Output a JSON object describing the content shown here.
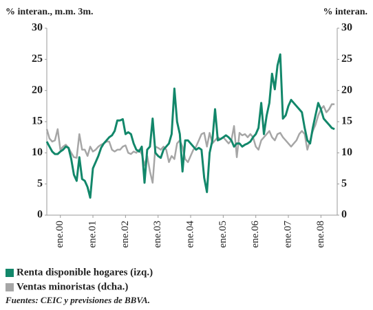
{
  "chart_data": {
    "type": "line",
    "y_label": "% interan., m.m. 3m.",
    "y2_label": "% interan.",
    "source": "Fuentes: CEIC y previsiones de BBVA.",
    "x": [
      -5,
      -4,
      -3,
      -2,
      -1,
      0,
      1,
      2,
      3,
      4,
      5,
      6,
      7,
      8,
      9,
      10,
      11,
      12,
      13,
      14,
      15,
      16,
      17,
      18,
      19,
      20,
      21,
      22,
      23,
      24,
      25,
      26,
      27,
      28,
      29,
      30,
      31,
      32,
      33,
      34,
      35,
      36,
      37,
      38,
      39,
      40,
      41,
      42,
      43,
      44,
      45,
      46,
      47,
      48,
      49,
      50,
      51,
      52,
      53,
      54,
      55,
      56,
      57,
      58,
      59,
      60,
      61,
      62,
      63,
      64,
      65,
      66,
      67,
      68,
      69,
      70,
      71,
      72,
      73,
      74,
      75,
      76,
      77,
      78,
      79,
      80,
      81,
      82,
      83,
      84,
      85,
      86,
      87,
      88,
      89,
      90,
      91,
      92,
      93,
      94,
      95,
      96,
      97,
      98,
      99,
      100,
      101
    ],
    "xlim": [
      -5,
      102
    ],
    "xticks": [
      {
        "value": 0,
        "label": "ene.00"
      },
      {
        "value": 12,
        "label": "ene.01"
      },
      {
        "value": 24,
        "label": "ene.02"
      },
      {
        "value": 36,
        "label": "ene.03"
      },
      {
        "value": 48,
        "label": "ene.04"
      },
      {
        "value": 60,
        "label": "ene.05"
      },
      {
        "value": 72,
        "label": "ene.06"
      },
      {
        "value": 84,
        "label": "ene.07"
      },
      {
        "value": 96,
        "label": "ene.08"
      }
    ],
    "ylim": [
      0,
      30
    ],
    "yticks": [
      0,
      5,
      10,
      15,
      20,
      25,
      30
    ],
    "y2lim": [
      0,
      30
    ],
    "y2ticks": [
      0,
      5,
      10,
      15,
      20,
      25,
      30
    ],
    "series": [
      {
        "name": "Renta disponible hogares (izq.)",
        "color": "#12876a",
        "axis": "y",
        "values": [
          11.8,
          11,
          10.2,
          9.8,
          9.8,
          10.2,
          10.5,
          11,
          10.8,
          9,
          6.5,
          5.5,
          9.3,
          5.8,
          5.5,
          4.5,
          2.8,
          7.5,
          8.5,
          9.5,
          10.8,
          11.5,
          12,
          12.5,
          12.8,
          13.5,
          15.2,
          15.2,
          15.4,
          13,
          13.3,
          13,
          11.5,
          10.5,
          10.2,
          11,
          5.2,
          10.5,
          11,
          15.5,
          10,
          9.5,
          9.2,
          10.5,
          11,
          11.5,
          13,
          20.3,
          15,
          13,
          7,
          12,
          12,
          11.5,
          11,
          10.5,
          10.8,
          10.5,
          6,
          3.7,
          10,
          12,
          17,
          12,
          12.2,
          12.5,
          12.8,
          12.5,
          12,
          11,
          11.5,
          11.5,
          11,
          11.3,
          11.5,
          11.8,
          12.5,
          13,
          14,
          18,
          13,
          16,
          18,
          22.7,
          20.2,
          24,
          25.8,
          15.5,
          16,
          17.5,
          18.5,
          18,
          17.5,
          17,
          16.5,
          14,
          12,
          11.5,
          14,
          16,
          18,
          17,
          15.5,
          15,
          14.5,
          14,
          13.8
        ]
      },
      {
        "name": "Ventas minoristas (dcha.)",
        "color": "#a6a6a6",
        "axis": "y2",
        "values": [
          13.8,
          12.3,
          11.8,
          12,
          13.8,
          10.5,
          11,
          11.3,
          10.8,
          10,
          9.3,
          9.2,
          13,
          10.5,
          10.5,
          9.5,
          11,
          10.2,
          10.5,
          11,
          11.3,
          11.5,
          11.8,
          11.8,
          10.5,
          10.2,
          10.5,
          10.5,
          11,
          11.2,
          10,
          9.8,
          10.2,
          10,
          10.5,
          9.8,
          8,
          9.5,
          7,
          5.2,
          11,
          10.8,
          10.5,
          11,
          10.5,
          8.5,
          9.5,
          9,
          11.5,
          12,
          11,
          9,
          8.5,
          9.5,
          10.5,
          11,
          12,
          13,
          13.2,
          11,
          13.2,
          11.5,
          12,
          12.5,
          12.2,
          12.5,
          12,
          11.5,
          12,
          14.3,
          9.3,
          13.2,
          12.8,
          13,
          12.5,
          13,
          12.5,
          11,
          10.5,
          12,
          12.5,
          13,
          13.5,
          12.5,
          12,
          13,
          13.2,
          12.5,
          12,
          11.5,
          11,
          11.5,
          12,
          13,
          13.5,
          13,
          10.5,
          12,
          13.5,
          14.5,
          16,
          17,
          17.5,
          16.5,
          17,
          17.8,
          17.8
        ]
      }
    ]
  }
}
